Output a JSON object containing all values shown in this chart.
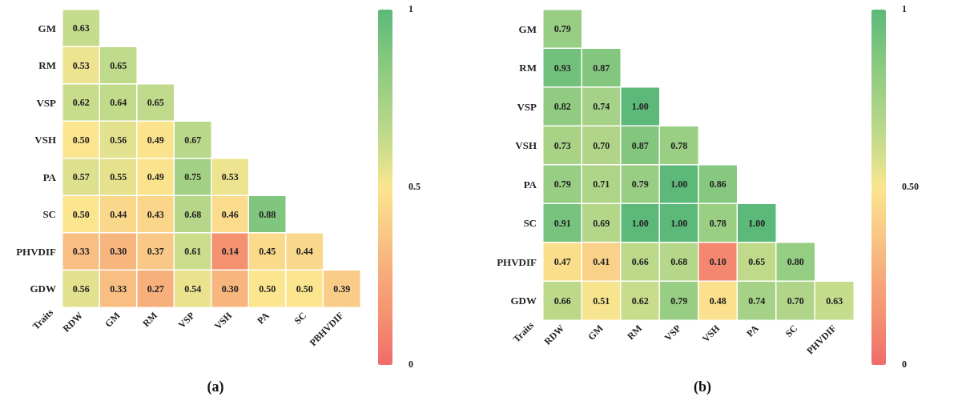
{
  "chart_data": [
    {
      "type": "heatmap",
      "title": "(a)",
      "xlabel": "Traits",
      "categories": [
        "RDW",
        "GM",
        "RM",
        "VSP",
        "VSH",
        "PA",
        "SC",
        "PBHVDIF"
      ],
      "y_categories": [
        "GM",
        "RM",
        "VSP",
        "VSH",
        "PA",
        "SC",
        "PHVDIF",
        "GDW"
      ],
      "cells": [
        [
          0.63,
          null,
          null,
          null,
          null,
          null,
          null,
          null
        ],
        [
          0.53,
          0.65,
          null,
          null,
          null,
          null,
          null,
          null
        ],
        [
          0.62,
          0.64,
          0.65,
          null,
          null,
          null,
          null,
          null
        ],
        [
          0.5,
          0.56,
          0.49,
          0.67,
          null,
          null,
          null,
          null
        ],
        [
          0.57,
          0.55,
          0.49,
          0.75,
          0.53,
          null,
          null,
          null
        ],
        [
          0.5,
          0.44,
          0.43,
          0.68,
          0.46,
          0.88,
          null,
          null
        ],
        [
          0.33,
          0.3,
          0.37,
          0.61,
          0.14,
          0.45,
          0.44,
          null
        ],
        [
          0.56,
          0.33,
          0.27,
          0.54,
          0.3,
          0.5,
          0.5,
          0.39
        ]
      ],
      "cell_labels": [
        [
          "0.63",
          null,
          null,
          null,
          null,
          null,
          null,
          null
        ],
        [
          "0.53",
          "0.65",
          null,
          null,
          null,
          null,
          null,
          null
        ],
        [
          "0.62",
          "0.64",
          "0.65",
          null,
          null,
          null,
          null,
          null
        ],
        [
          "0.50",
          "0.56",
          "0.49",
          "0.67",
          null,
          null,
          null,
          null
        ],
        [
          "0.57",
          "0.55",
          "0.49",
          "0.75",
          "0.53",
          null,
          null,
          null
        ],
        [
          "0.50",
          "0.44",
          "0.43",
          "0.68",
          "0.46",
          "0.88",
          null,
          null
        ],
        [
          "0.33",
          "0.30",
          "0.37",
          "0.61",
          "0.14",
          "0.45",
          "0.44",
          null
        ],
        [
          "0.56",
          "0.33",
          "0.27",
          "0.54",
          "0.30",
          "0.50",
          "0.50",
          "0.39"
        ]
      ],
      "clim": [
        0,
        1
      ],
      "cticks": [
        0,
        0.5,
        1
      ]
    },
    {
      "type": "heatmap",
      "title": "(b)",
      "xlabel": "Traits",
      "categories": [
        "RDW",
        "GM",
        "RM",
        "VSP",
        "VSH",
        "PA",
        "SC",
        "PHVDIF"
      ],
      "y_categories": [
        "GM",
        "RM",
        "VSP",
        "VSH",
        "PA",
        "SC",
        "PHVDIF",
        "GDW"
      ],
      "cells": [
        [
          0.79,
          null,
          null,
          null,
          null,
          null,
          null,
          null
        ],
        [
          0.93,
          0.87,
          null,
          null,
          null,
          null,
          null,
          null
        ],
        [
          0.82,
          0.74,
          1.0,
          null,
          null,
          null,
          null,
          null
        ],
        [
          0.73,
          0.7,
          0.87,
          0.78,
          null,
          null,
          null,
          null
        ],
        [
          0.79,
          0.71,
          0.79,
          1.0,
          0.86,
          null,
          null,
          null
        ],
        [
          0.91,
          0.69,
          1.0,
          1.0,
          0.78,
          1.0,
          null,
          null
        ],
        [
          0.47,
          0.41,
          0.66,
          0.68,
          0.1,
          0.65,
          0.8,
          null
        ],
        [
          0.66,
          0.51,
          0.62,
          0.79,
          0.48,
          0.74,
          0.7,
          0.63
        ]
      ],
      "cell_labels": [
        [
          "0.79",
          null,
          null,
          null,
          null,
          null,
          null,
          null
        ],
        [
          "0.93",
          "0.87",
          null,
          null,
          null,
          null,
          null,
          null
        ],
        [
          "0.82",
          "0.74",
          "1.00",
          null,
          null,
          null,
          null,
          null
        ],
        [
          "0.73",
          "0.70",
          "0.87",
          "0.78",
          null,
          null,
          null,
          null
        ],
        [
          "0.79",
          "0.71",
          "0.79",
          "1.00",
          "0.86",
          null,
          null,
          null
        ],
        [
          "0.91",
          "0.69",
          "1.00",
          "1.00",
          "0.78",
          "1.00",
          null,
          null
        ],
        [
          "0.47",
          "0.41",
          "0.66",
          "0.68",
          "0.10",
          "0.65",
          "0.80",
          null
        ],
        [
          "0.66",
          "0.51",
          "0.62",
          "0.79",
          "0.48",
          "0.74",
          "0.70",
          "0.63"
        ]
      ],
      "clim": [
        0,
        1
      ],
      "cticks": [
        0,
        {
          "value": 0.5,
          "label": "0.50"
        },
        1
      ]
    }
  ]
}
